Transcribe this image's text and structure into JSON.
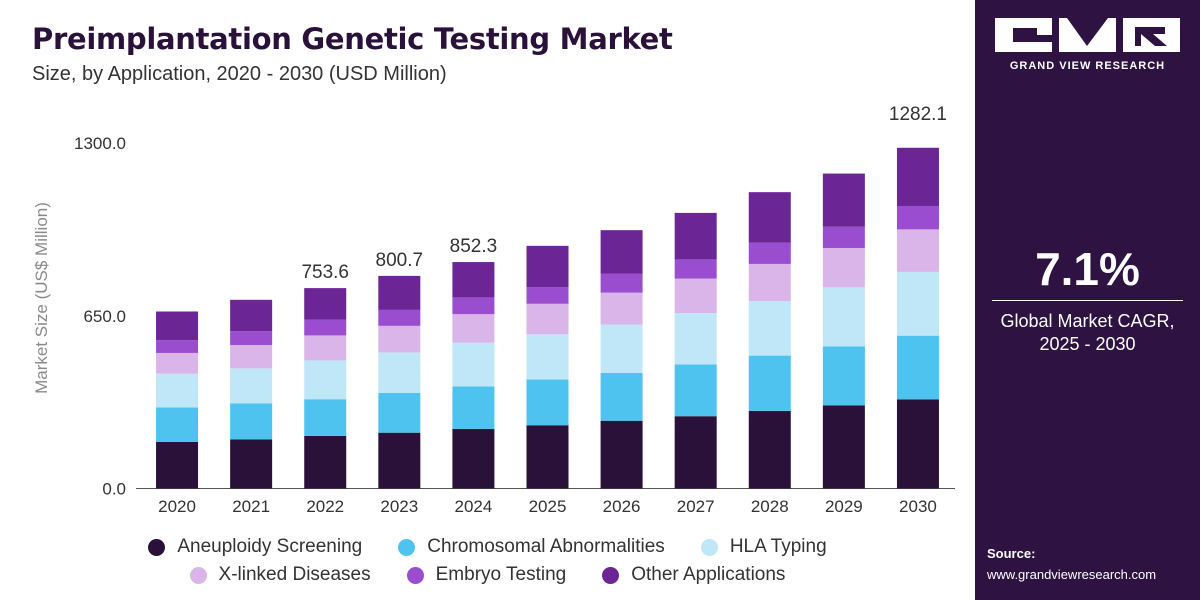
{
  "header": {
    "title": "Preimplantation Genetic Testing Market",
    "subtitle": "Size, by Application, 2020 - 2030 (USD Million)"
  },
  "sidebar": {
    "brand": "GRAND VIEW RESEARCH",
    "cagr_value": "7.1%",
    "cagr_label_line1": "Global Market CAGR,",
    "cagr_label_line2": "2025 - 2030",
    "source_label": "Source:",
    "source_url": "www.grandviewresearch.com",
    "background_color": "#2d1242"
  },
  "chart_data": {
    "type": "bar",
    "stacked": true,
    "categories": [
      "2020",
      "2021",
      "2022",
      "2023",
      "2024",
      "2025",
      "2026",
      "2027",
      "2028",
      "2029",
      "2030"
    ],
    "ylabel": "Market Size (US$ Million)",
    "xlabel": "",
    "ylim": [
      0,
      1300
    ],
    "y_ticks": [
      "0.0",
      "650.0",
      "1300.0"
    ],
    "y_tick_values": [
      0,
      650,
      1300
    ],
    "grid": false,
    "legend_position": "bottom",
    "data_labels": [
      {
        "category": "2022",
        "text": "753.6",
        "value": 753.6
      },
      {
        "category": "2023",
        "text": "800.7",
        "value": 800.7
      },
      {
        "category": "2024",
        "text": "852.3",
        "value": 852.3
      },
      {
        "category": "2030",
        "text": "1282.1",
        "value": 1282.1
      }
    ],
    "series": [
      {
        "name": "Aneuploidy Screening",
        "color": "#2a1139",
        "values": [
          175,
          185,
          198,
          210,
          224,
          238,
          255,
          272,
          292,
          313,
          335
        ]
      },
      {
        "name": "Chromosomal Abnormalities",
        "color": "#4fc3ef",
        "values": [
          130,
          135,
          138,
          150,
          160,
          172,
          180,
          195,
          208,
          222,
          240
        ]
      },
      {
        "name": "HLA Typing",
        "color": "#bfe7f7",
        "values": [
          127,
          132,
          146,
          152,
          165,
          170,
          182,
          193,
          205,
          222,
          240
        ]
      },
      {
        "name": "X-linked Diseases",
        "color": "#d9b5ea",
        "values": [
          78,
          88,
          94,
          100,
          107,
          115,
          120,
          130,
          140,
          148,
          160
        ]
      },
      {
        "name": "Embryo Testing",
        "color": "#9b4dd0",
        "values": [
          48,
          52,
          60,
          60,
          63,
          63,
          72,
          72,
          80,
          80,
          88
        ]
      },
      {
        "name": "Other Applications",
        "color": "#6b2594",
        "values": [
          108,
          118,
          118,
          128,
          133,
          155,
          163,
          175,
          190,
          200,
          219
        ]
      }
    ]
  }
}
